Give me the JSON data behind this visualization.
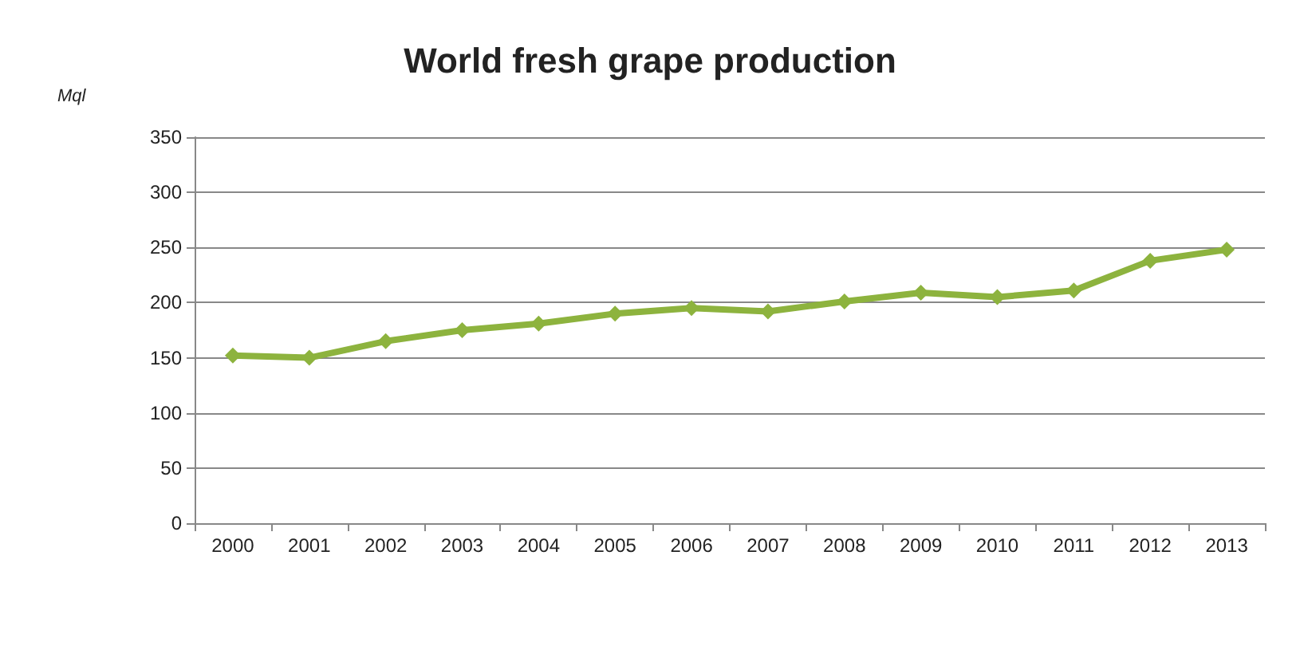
{
  "chart_data": {
    "type": "line",
    "title": "World fresh grape production",
    "ylabel": "Mql",
    "categories": [
      "2000",
      "2001",
      "2002",
      "2003",
      "2004",
      "2005",
      "2006",
      "2007",
      "2008",
      "2009",
      "2010",
      "2011",
      "2012",
      "2013"
    ],
    "series": [
      {
        "color": "#8db33e",
        "values": [
          152,
          150,
          165,
          175,
          181,
          190,
          195,
          192,
          201,
          209,
          205,
          211,
          238,
          248
        ]
      }
    ],
    "ylim": [
      0,
      350
    ],
    "yticks": [
      0,
      50,
      100,
      150,
      200,
      250,
      300,
      350
    ],
    "grid": "y",
    "marker": "diamond",
    "line_style": "solid"
  }
}
